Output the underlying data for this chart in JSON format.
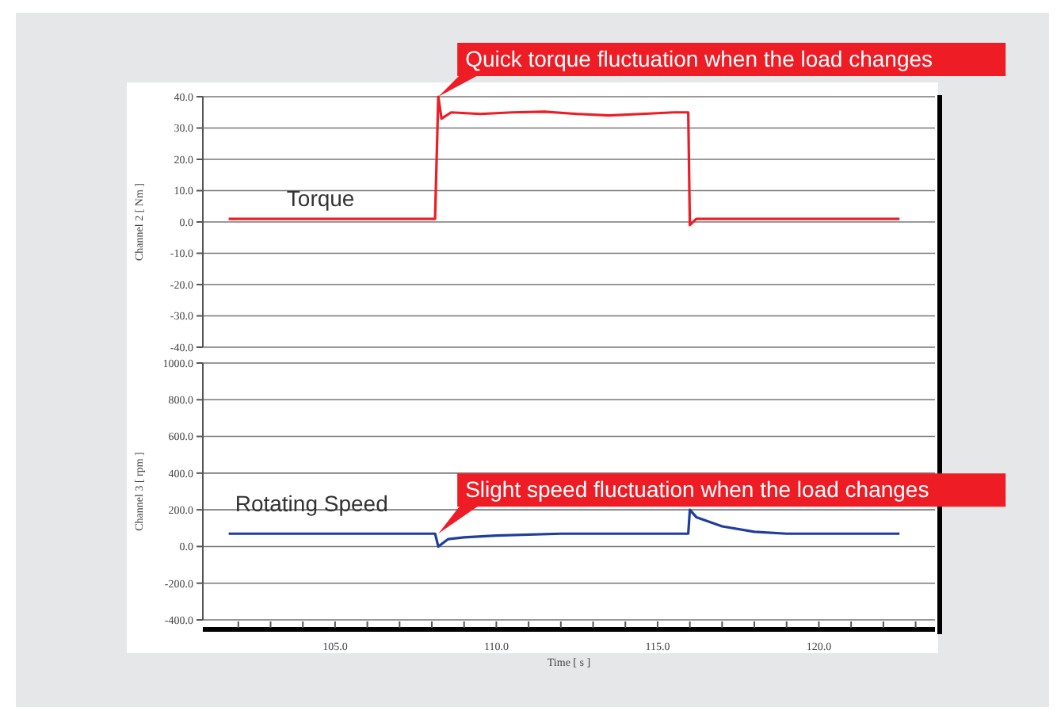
{
  "chart_data": [
    {
      "type": "line",
      "ylabel": "Channel 2 [ Nm ]",
      "tick_labels": "y",
      "grid": "y",
      "marker": "none",
      "line_style": "solid",
      "xlim": [
        100.9,
        123.6
      ],
      "ylim": [
        -40,
        40
      ],
      "yticks": [
        {
          "value": -40,
          "label": "-40.0"
        },
        {
          "value": -30,
          "label": "-30.0"
        },
        {
          "value": -20,
          "label": "-20.0"
        },
        {
          "value": -10,
          "label": "-10.0"
        },
        {
          "value": 0,
          "label": "0.0"
        },
        {
          "value": 10,
          "label": "10.0"
        },
        {
          "value": 20,
          "label": "20.0"
        },
        {
          "value": 30,
          "label": "30.0"
        },
        {
          "value": 40,
          "label": "40.0"
        }
      ],
      "series": [
        {
          "name": "Torque",
          "color": "#ee1c25",
          "x": [
            101.7,
            103,
            105,
            107,
            108.1,
            108.2,
            108.3,
            108.6,
            109.5,
            110.5,
            111.5,
            112.5,
            113.5,
            114.5,
            115.5,
            115.95,
            116.0,
            116.2,
            117,
            119,
            121,
            122.5
          ],
          "values": [
            1,
            1,
            1,
            1,
            1,
            40,
            33,
            35,
            34.5,
            35,
            35.2,
            34.5,
            34,
            34.5,
            35,
            35,
            -1,
            1,
            1,
            1,
            1,
            1
          ]
        }
      ],
      "annotations": [
        {
          "text": "Quick torque fluctuation when the load changes",
          "x": 108.2,
          "y": 40
        }
      ]
    },
    {
      "type": "line",
      "ylabel": "Channel 3 [ rpm ]",
      "xlabel": "Time [ s ]",
      "grid": "y",
      "marker": "none",
      "line_style": "solid",
      "xlim": [
        100.9,
        123.6
      ],
      "xticks": [
        {
          "value": 102,
          "label": null
        },
        {
          "value": 103,
          "label": null
        },
        {
          "value": 104,
          "label": null
        },
        {
          "value": 105,
          "label": "105.0"
        },
        {
          "value": 106,
          "label": null
        },
        {
          "value": 107,
          "label": null
        },
        {
          "value": 108,
          "label": null
        },
        {
          "value": 109,
          "label": null
        },
        {
          "value": 110,
          "label": "110.0"
        },
        {
          "value": 111,
          "label": null
        },
        {
          "value": 112,
          "label": null
        },
        {
          "value": 113,
          "label": null
        },
        {
          "value": 114,
          "label": null
        },
        {
          "value": 115,
          "label": "115.0"
        },
        {
          "value": 116,
          "label": null
        },
        {
          "value": 117,
          "label": null
        },
        {
          "value": 118,
          "label": null
        },
        {
          "value": 119,
          "label": null
        },
        {
          "value": 120,
          "label": "120.0"
        },
        {
          "value": 121,
          "label": null
        },
        {
          "value": 122,
          "label": null
        },
        {
          "value": 123,
          "label": null
        }
      ],
      "ylim": [
        -400,
        1000
      ],
      "yticks": [
        {
          "value": -400,
          "label": "-400.0"
        },
        {
          "value": -200,
          "label": "-200.0"
        },
        {
          "value": 0,
          "label": "0.0"
        },
        {
          "value": 200,
          "label": "200.0"
        },
        {
          "value": 400,
          "label": "400.0"
        },
        {
          "value": 600,
          "label": "600.0"
        },
        {
          "value": 800,
          "label": "800.0"
        },
        {
          "value": 1000,
          "label": "1000.0"
        }
      ],
      "series": [
        {
          "name": "Rotating Speed",
          "color": "#1f3e9c",
          "x": [
            101.7,
            103,
            105,
            107,
            108.1,
            108.2,
            108.5,
            109,
            110,
            112,
            114,
            115.95,
            116.0,
            116.2,
            117,
            118,
            119,
            121,
            122.5
          ],
          "values": [
            70,
            70,
            70,
            70,
            70,
            0,
            40,
            50,
            60,
            70,
            70,
            70,
            200,
            160,
            110,
            80,
            70,
            70,
            70
          ]
        }
      ],
      "annotations": [
        {
          "text": "Slight speed fluctuation when the load changes",
          "x": 108.2,
          "y": 70
        }
      ]
    }
  ]
}
